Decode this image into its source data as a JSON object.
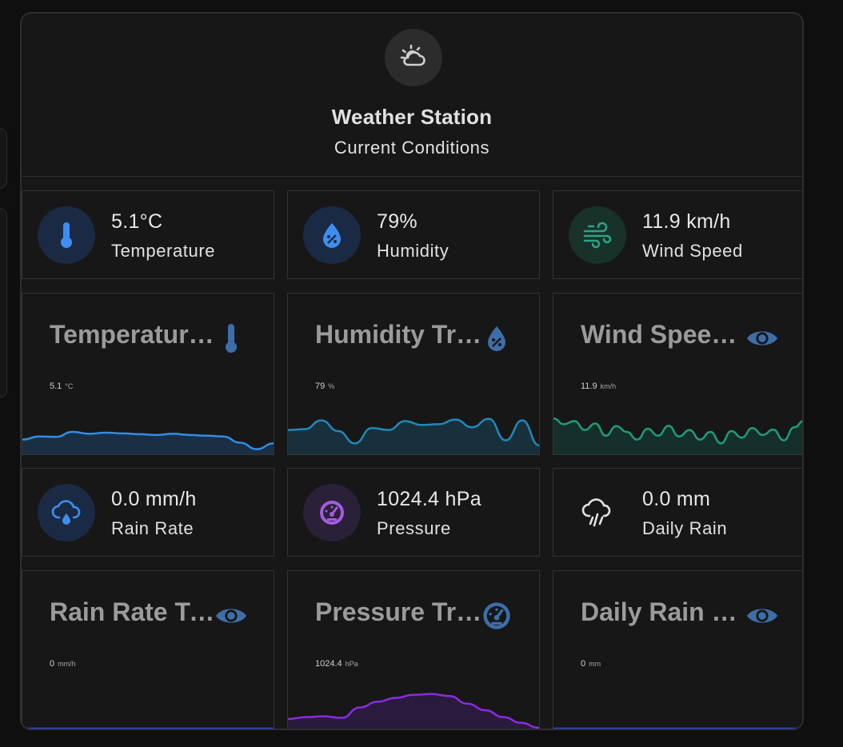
{
  "header": {
    "title": "Weather Station",
    "subtitle": "Current Conditions",
    "icon": "weather-partly-cloudy-icon"
  },
  "tiles": [
    {
      "value": "5.1°C",
      "label": "Temperature",
      "icon": "thermometer-icon",
      "icon_color": "#3d8ef0",
      "icon_bg": "#1b2a44"
    },
    {
      "value": "79%",
      "label": "Humidity",
      "icon": "water-percent-icon",
      "icon_color": "#3d8ef0",
      "icon_bg": "#1b2a44"
    },
    {
      "value": "11.9 km/h",
      "label": "Wind Speed",
      "icon": "weather-windy-icon",
      "icon_color": "#2aa389",
      "icon_bg": "#183129"
    },
    {
      "value": "0.0 mm/h",
      "label": "Rain Rate",
      "icon": "weather-rainy-icon",
      "icon_color": "#3d8ef0",
      "icon_bg": "#1b2a44"
    },
    {
      "value": "1024.4 hPa",
      "label": "Pressure",
      "icon": "gauge-icon",
      "icon_color": "#a35ce0",
      "icon_bg": "#2a2038"
    },
    {
      "value": "0.0 mm",
      "label": "Daily Rain",
      "icon": "weather-pouring-icon",
      "icon_color": "#e1e1e1",
      "icon_bg": "transparent"
    }
  ],
  "graphs": [
    {
      "title": "Temperature Trend",
      "value": "5.1",
      "unit": "°C",
      "icon": "thermometer-icon",
      "line_color": "#2f8ee8",
      "fill_color": "#1b2f44",
      "trend": [
        0.3,
        0.38,
        0.37,
        0.5,
        0.45,
        0.48,
        0.46,
        0.44,
        0.42,
        0.45,
        0.42,
        0.4,
        0.38,
        0.22,
        0.05,
        0.2
      ]
    },
    {
      "title": "Humidity Trend",
      "value": "79",
      "unit": "%",
      "icon": "water-percent-icon",
      "line_color": "#2189b9",
      "fill_color": "#17303b",
      "trend": [
        0.55,
        0.57,
        0.8,
        0.52,
        0.2,
        0.6,
        0.55,
        0.78,
        0.68,
        0.7,
        0.82,
        0.62,
        0.84,
        0.28,
        0.8,
        0.15
      ]
    },
    {
      "title": "Wind Speed Trend",
      "value": "11.9",
      "unit": "km/h",
      "icon": "eye-icon",
      "line_color": "#1f9c7c",
      "fill_color": "#15302a",
      "trend": [
        0.85,
        0.7,
        0.78,
        0.55,
        0.72,
        0.4,
        0.65,
        0.5,
        0.3,
        0.58,
        0.4,
        0.66,
        0.38,
        0.55,
        0.3,
        0.5,
        0.2,
        0.52,
        0.35,
        0.6,
        0.42,
        0.56,
        0.28,
        0.62,
        0.8
      ]
    },
    {
      "title": "Rain Rate Trend",
      "value": "0",
      "unit": "mm/h",
      "icon": "eye-icon",
      "line_color": "#2c4fd6",
      "fill_color": "#1a2340",
      "trend": [
        0,
        0,
        0,
        0,
        0,
        0,
        0,
        0,
        0,
        0
      ]
    },
    {
      "title": "Pressure Trend",
      "value": "1024.4",
      "unit": "hPa",
      "icon": "gauge-icon",
      "line_color": "#8a2be2",
      "fill_color": "#2a1a3d",
      "trend": [
        0.25,
        0.3,
        0.32,
        0.28,
        0.55,
        0.7,
        0.8,
        0.88,
        0.9,
        0.85,
        0.65,
        0.48,
        0.3,
        0.15,
        0.02
      ]
    },
    {
      "title": "Daily Rain Trend",
      "value": "0",
      "unit": "mm",
      "icon": "eye-icon",
      "line_color": "#2c4fd6",
      "fill_color": "#1a2340",
      "trend": [
        0,
        0,
        0,
        0,
        0,
        0,
        0,
        0,
        0,
        0
      ]
    }
  ]
}
